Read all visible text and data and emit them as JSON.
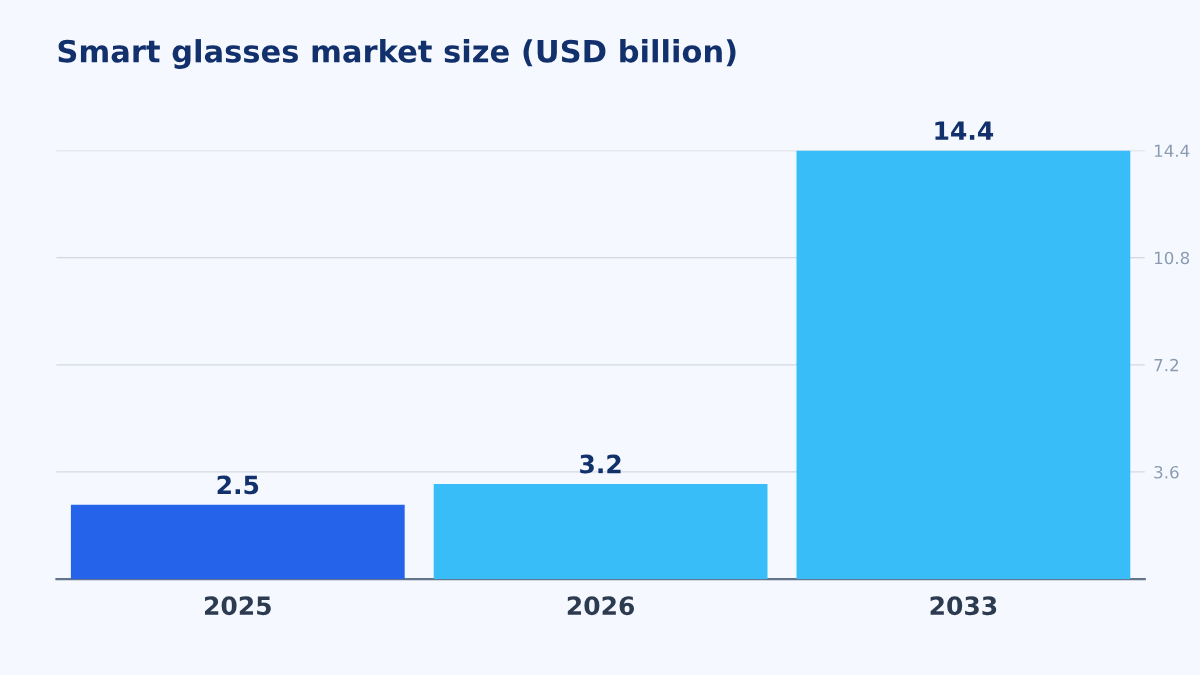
{
  "chart_data": {
    "type": "bar",
    "title": "Smart glasses market size (USD billion)",
    "categories": [
      "2025",
      "2026",
      "2033"
    ],
    "values": [
      2.5,
      3.2,
      14.4
    ],
    "colors": [
      "#2563eb",
      "#38bdf8",
      "#38bdf8"
    ],
    "ylim": [
      0,
      14.4
    ],
    "yticks": [
      3.6,
      7.2,
      10.8,
      14.4
    ],
    "grid": "y",
    "data_labels": true
  }
}
